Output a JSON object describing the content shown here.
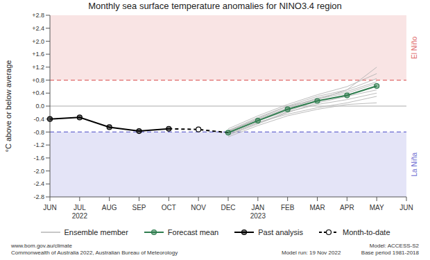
{
  "chart_data": {
    "type": "line",
    "title": "Monthly sea surface temperature anomalies for NINO3.4 region",
    "y_label": "°C above or below average",
    "categories": [
      "JUN",
      "JUL",
      "AUG",
      "SEP",
      "OCT",
      "NOV",
      "DEC",
      "JAN",
      "FEB",
      "MAR",
      "APR",
      "MAY",
      "JUN"
    ],
    "years": [
      null,
      "2022",
      null,
      null,
      null,
      null,
      null,
      "2023",
      null,
      null,
      null,
      null,
      null
    ],
    "ylim": [
      -2.8,
      2.8
    ],
    "yticks": [
      -2.8,
      -2.4,
      {
        "value": -2.0,
        "label": "-2.0"
      },
      -1.6,
      -1.2,
      -0.8,
      -0.4,
      {
        "value": 0,
        "label": "0.0"
      },
      {
        "value": 0.4,
        "label": "+0.4"
      },
      {
        "value": 0.8,
        "label": "+0.8"
      },
      {
        "value": 1.2,
        "label": "+1.2"
      },
      {
        "value": 1.6,
        "label": "+1.6"
      },
      {
        "value": 2.0,
        "label": "+2.0"
      },
      {
        "value": 2.4,
        "label": "+2.4"
      },
      {
        "value": 2.8,
        "label": "+2.8"
      }
    ],
    "thresholds": [
      {
        "name": "El Niño",
        "value": 0.8,
        "color": "#e06a6a"
      },
      {
        "name": "La Niña",
        "value": -0.8,
        "color": "#6a6ad0"
      }
    ],
    "series": [
      {
        "name": "Ensemble member",
        "color": "#b4b4b4",
        "line_style": "solid",
        "marker": "none",
        "members": [
          [
            null,
            null,
            null,
            null,
            null,
            null,
            -0.9,
            -0.55,
            -0.2,
            0.1,
            0.3,
            0.5,
            null
          ],
          [
            null,
            null,
            null,
            null,
            null,
            null,
            -0.75,
            -0.35,
            0.0,
            0.3,
            0.5,
            0.85,
            null
          ],
          [
            null,
            null,
            null,
            null,
            null,
            null,
            -0.85,
            -0.5,
            -0.25,
            -0.05,
            0.1,
            0.3,
            null
          ],
          [
            null,
            null,
            null,
            null,
            null,
            null,
            -0.8,
            -0.4,
            -0.05,
            0.25,
            0.45,
            0.75,
            null
          ],
          [
            null,
            null,
            null,
            null,
            null,
            null,
            -0.95,
            -0.6,
            -0.3,
            -0.1,
            0.05,
            0.1,
            null
          ],
          [
            null,
            null,
            null,
            null,
            null,
            null,
            -0.7,
            -0.3,
            0.05,
            0.35,
            0.6,
            1.0,
            null
          ],
          [
            null,
            null,
            null,
            null,
            null,
            null,
            -0.82,
            -0.45,
            -0.15,
            0.15,
            0.35,
            0.6,
            null
          ],
          [
            null,
            null,
            null,
            null,
            null,
            null,
            -0.78,
            -0.38,
            0.0,
            0.2,
            0.5,
            1.2,
            null
          ],
          [
            null,
            null,
            null,
            null,
            null,
            null,
            -0.88,
            -0.52,
            -0.18,
            0.05,
            0.2,
            0.4,
            null
          ],
          [
            null,
            null,
            null,
            null,
            null,
            null,
            -0.76,
            -0.42,
            -0.08,
            0.22,
            0.4,
            0.7,
            null
          ]
        ]
      },
      {
        "name": "Forecast mean",
        "color": "#2f7d4f",
        "line_style": "solid",
        "marker": "circle",
        "values": [
          null,
          null,
          null,
          null,
          null,
          null,
          -0.82,
          -0.45,
          -0.1,
          0.16,
          0.33,
          0.62,
          null
        ]
      },
      {
        "name": "Past analysis",
        "color": "#000000",
        "line_style": "solid",
        "marker": "circle",
        "values": [
          -0.4,
          -0.35,
          -0.65,
          -0.77,
          -0.7,
          null,
          null,
          null,
          null,
          null,
          null,
          null,
          null
        ]
      },
      {
        "name": "Month-to-date",
        "color": "#000000",
        "line_style": "dashed",
        "marker": "open_circle",
        "values": [
          null,
          null,
          null,
          null,
          -0.7,
          -0.72,
          -0.82,
          null,
          null,
          null,
          null,
          null,
          null
        ]
      }
    ],
    "footer": {
      "left": [
        "www.bom.gov.au/climate",
        "Commonwealth of Australia 2022, Australian Bureau of Meteorology"
      ],
      "center": "Model run: 19 Nov 2022",
      "right": [
        "Model: ACCESS-S2",
        "Base period 1981-2018"
      ]
    }
  }
}
